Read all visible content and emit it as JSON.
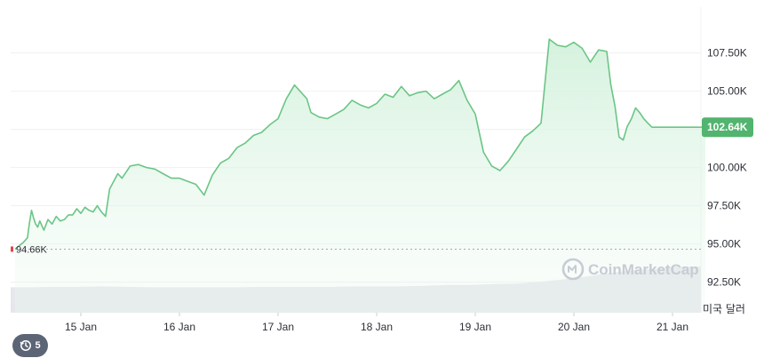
{
  "chart_data": {
    "type": "area",
    "series": [
      {
        "x": [
          "2025-01-14T08:00",
          "2025-01-14T10:00",
          "2025-01-14T11:00",
          "2025-01-14T11:30",
          "2025-01-14T12:00",
          "2025-01-14T12:30",
          "2025-01-14T13:00",
          "2025-01-14T13:30",
          "2025-01-14T14:00",
          "2025-01-14T15:00",
          "2025-01-14T16:00",
          "2025-01-14T17:00",
          "2025-01-14T18:00",
          "2025-01-14T19:00",
          "2025-01-14T20:00",
          "2025-01-14T21:00",
          "2025-01-14T22:00",
          "2025-01-14T23:00",
          "2025-01-15T00:00",
          "2025-01-15T01:00",
          "2025-01-15T02:00",
          "2025-01-15T03:00",
          "2025-01-15T04:00",
          "2025-01-15T05:00",
          "2025-01-15T06:00",
          "2025-01-15T07:00",
          "2025-01-15T08:00",
          "2025-01-15T09:00",
          "2025-01-15T10:00",
          "2025-01-15T11:00",
          "2025-01-15T12:00",
          "2025-01-15T14:00",
          "2025-01-15T16:00",
          "2025-01-15T18:00",
          "2025-01-15T20:00",
          "2025-01-15T22:00",
          "2025-01-16T00:00",
          "2025-01-16T02:00",
          "2025-01-16T04:00",
          "2025-01-16T06:00",
          "2025-01-16T08:00",
          "2025-01-16T09:00",
          "2025-01-16T10:00",
          "2025-01-16T12:00",
          "2025-01-16T14:00",
          "2025-01-16T16:00",
          "2025-01-16T18:00",
          "2025-01-16T20:00",
          "2025-01-16T22:00",
          "2025-01-17T00:00",
          "2025-01-17T02:00",
          "2025-01-17T04:00",
          "2025-01-17T06:00",
          "2025-01-17T07:00",
          "2025-01-17T08:00",
          "2025-01-17T10:00",
          "2025-01-17T12:00",
          "2025-01-17T14:00",
          "2025-01-17T16:00",
          "2025-01-17T18:00",
          "2025-01-17T20:00",
          "2025-01-17T22:00",
          "2025-01-18T00:00",
          "2025-01-18T02:00",
          "2025-01-18T04:00",
          "2025-01-18T06:00",
          "2025-01-18T08:00",
          "2025-01-18T10:00",
          "2025-01-18T12:00",
          "2025-01-18T14:00",
          "2025-01-18T16:00",
          "2025-01-18T18:00",
          "2025-01-18T20:00",
          "2025-01-18T22:00",
          "2025-01-19T00:00",
          "2025-01-19T02:00",
          "2025-01-19T04:00",
          "2025-01-19T06:00",
          "2025-01-19T08:00",
          "2025-01-19T10:00",
          "2025-01-19T12:00",
          "2025-01-19T14:00",
          "2025-01-19T16:00",
          "2025-01-19T18:00",
          "2025-01-19T20:00",
          "2025-01-19T22:00",
          "2025-01-20T00:00",
          "2025-01-20T02:00",
          "2025-01-20T04:00",
          "2025-01-20T06:00",
          "2025-01-20T08:00",
          "2025-01-20T09:00",
          "2025-01-20T10:00",
          "2025-01-20T11:00",
          "2025-01-20T12:00",
          "2025-01-20T13:00",
          "2025-01-20T14:00",
          "2025-01-20T15:00",
          "2025-01-20T16:00",
          "2025-01-20T17:00",
          "2025-01-20T18:00",
          "2025-01-20T19:00",
          "2025-01-20T20:00",
          "2025-01-20T21:00",
          "2025-01-20T22:00",
          "2025-01-20T23:00",
          "2025-01-21T00:00",
          "2025-01-21T01:00",
          "2025-01-21T02:00",
          "2025-01-21T03:00",
          "2025-01-21T04:00",
          "2025-01-21T05:00",
          "2025-01-21T06:00",
          "2025-01-21T07:00",
          "2025-01-21T08:00"
        ],
        "values": [
          94.66,
          95.1,
          95.4,
          96.4,
          97.2,
          96.7,
          96.3,
          96.1,
          96.5,
          95.9,
          96.6,
          96.3,
          96.8,
          96.5,
          96.6,
          96.9,
          96.9,
          97.3,
          97.0,
          97.4,
          97.2,
          97.1,
          97.5,
          97.1,
          96.8,
          98.6,
          99.1,
          99.6,
          99.3,
          99.7,
          100.1,
          100.2,
          100.0,
          99.9,
          99.6,
          99.3,
          99.3,
          99.1,
          98.9,
          98.2,
          99.5,
          99.9,
          100.3,
          100.6,
          101.3,
          101.6,
          102.1,
          102.3,
          102.8,
          103.2,
          104.5,
          105.4,
          104.8,
          104.5,
          103.6,
          103.3,
          103.2,
          103.5,
          103.8,
          104.4,
          104.1,
          103.9,
          104.2,
          104.8,
          104.6,
          105.3,
          104.7,
          104.9,
          105.0,
          104.5,
          104.8,
          105.1,
          105.7,
          104.4,
          103.5,
          101.0,
          100.1,
          99.8,
          100.4,
          101.2,
          102.0,
          102.4,
          102.9,
          108.4,
          108.0,
          107.9,
          108.2,
          107.8,
          106.9,
          107.7,
          107.6,
          105.4,
          104.0,
          102.0,
          101.8,
          102.7,
          103.2,
          103.9,
          103.6,
          103.2,
          102.9,
          102.64,
          102.64,
          102.64,
          102.64,
          102.64,
          102.64,
          102.64,
          102.64,
          102.64,
          102.64,
          102.64,
          102.64,
          102.64,
          102.64
        ]
      }
    ],
    "volume": [
      0.55,
      0.55,
      0.56,
      0.56,
      0.57,
      0.56,
      0.55,
      0.55,
      0.55,
      0.55,
      0.55,
      0.56,
      0.56,
      0.56,
      0.56,
      0.57,
      0.57,
      0.57,
      0.58,
      0.6,
      0.6,
      0.62,
      0.63,
      0.67,
      0.72,
      0.78,
      0.86,
      0.92,
      0.95,
      1.0,
      1.0
    ],
    "yticks": [
      "107.50K",
      "105.00K",
      "102.50K",
      "100.00K",
      "97.50K",
      "95.00K",
      "92.50K"
    ],
    "ytick_values": [
      107.5,
      105.0,
      102.5,
      100.0,
      97.5,
      95.0,
      92.5
    ],
    "xticks": [
      "15 Jan",
      "16 Jan",
      "17 Jan",
      "18 Jan",
      "19 Jan",
      "20 Jan",
      "21 Jan"
    ],
    "ylim": [
      90.5,
      110.5
    ],
    "open_value": 94.66,
    "open_label": "94.66K",
    "current_value": 102.64,
    "current_label": "102.64K",
    "unit_label": "미국 달러",
    "grid": true,
    "line_color": "#6bc585",
    "fill_color": "#d3f1dc",
    "badge_color": "#52b46e",
    "open_line_color": "#a5a9b0",
    "volume_color": "#e5e7eb"
  },
  "watermark": {
    "text": "CoinMarketCap"
  },
  "history_button": {
    "count": "5"
  }
}
